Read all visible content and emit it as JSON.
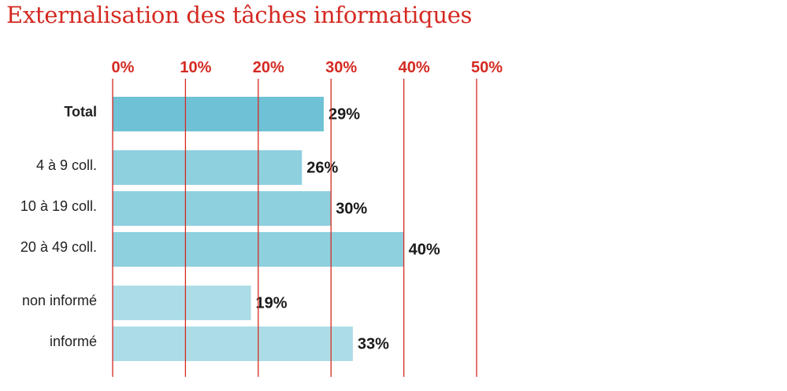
{
  "chart_data": {
    "type": "bar",
    "orientation": "horizontal",
    "title": "Externalisation des tâches informatiques",
    "categories": [
      "Total",
      "4 à 9 coll.",
      "10 à 19 coll.",
      "20 à 49 coll.",
      "non informé",
      "informé"
    ],
    "values": [
      29,
      26,
      30,
      40,
      19,
      33
    ],
    "value_labels": [
      "29%",
      "26%",
      "30%",
      "40%",
      "19%",
      "33%"
    ],
    "groups": [
      {
        "categories": [
          "Total"
        ],
        "bold": true,
        "color": "#6fc2d5"
      },
      {
        "categories": [
          "4 à 9 coll.",
          "10 à 19 coll.",
          "20 à 49 coll."
        ],
        "bold": false,
        "color": "#8ed0de"
      },
      {
        "categories": [
          "non informé",
          "informé"
        ],
        "bold": false,
        "color": "#acdde7"
      }
    ],
    "xlim": [
      0,
      50
    ],
    "x_ticks": [
      0,
      10,
      20,
      30,
      40,
      50
    ],
    "x_tick_labels": [
      "0%",
      "10%",
      "20%",
      "30%",
      "40%",
      "50%"
    ],
    "x_axis_position": "top",
    "grid": true,
    "grid_color": "#d42a22",
    "tick_label_color": "#d42a22",
    "title_color": "#d42a22"
  }
}
